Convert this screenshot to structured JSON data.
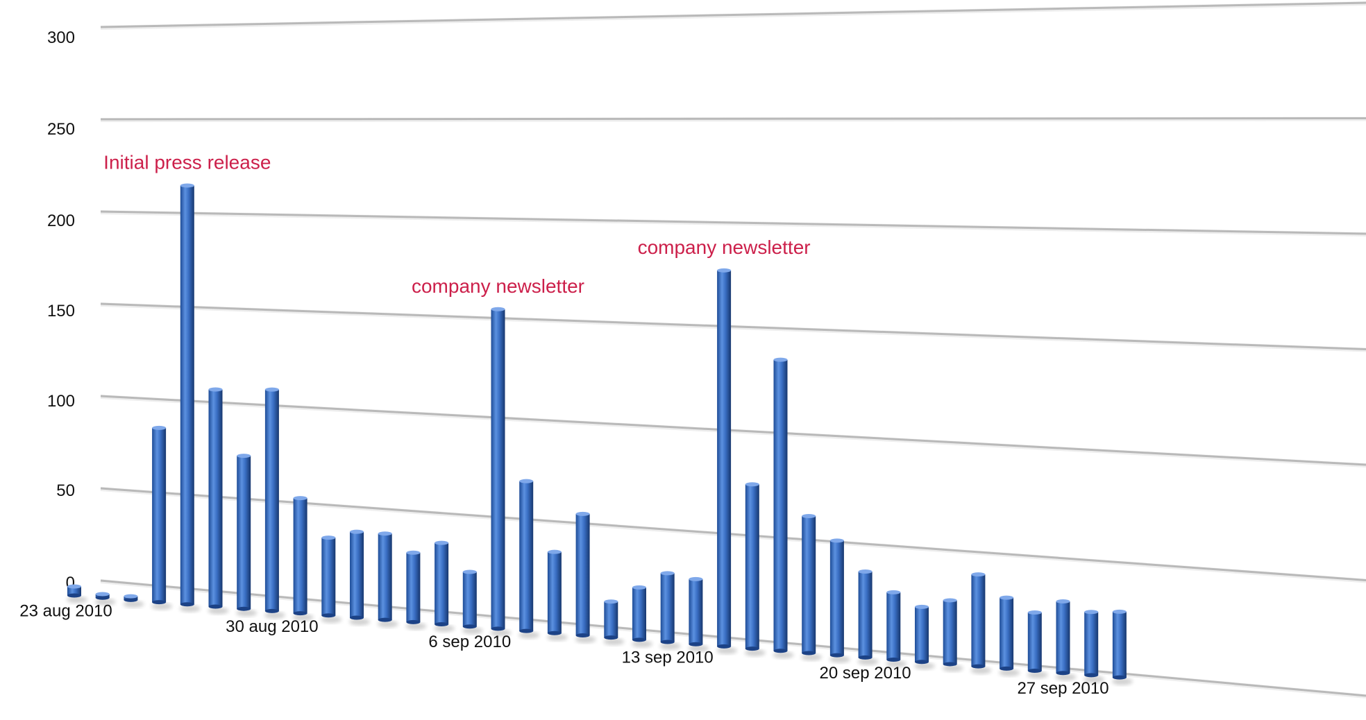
{
  "chart_data": {
    "type": "bar",
    "title": "",
    "xlabel": "",
    "ylabel": "",
    "ylim": [
      0,
      300
    ],
    "y_ticks": [
      "0",
      "50",
      "100",
      "150",
      "200",
      "250",
      "300"
    ],
    "x_tick_labels": [
      {
        "index": 0,
        "label": "23 aug 2010"
      },
      {
        "index": 7,
        "label": "30 aug 2010"
      },
      {
        "index": 14,
        "label": "6 sep 2010"
      },
      {
        "index": 21,
        "label": "13 sep 2010"
      },
      {
        "index": 28,
        "label": "20 sep 2010"
      },
      {
        "index": 35,
        "label": "27 sep 2010"
      }
    ],
    "values": [
      5,
      2,
      2,
      95,
      227,
      117,
      82,
      118,
      61,
      41,
      45,
      45,
      36,
      42,
      28,
      163,
      76,
      41,
      61,
      18,
      26,
      34,
      32,
      184,
      80,
      141,
      66,
      55,
      41,
      32,
      26,
      30,
      43,
      33,
      27,
      33,
      29,
      30
    ],
    "annotations": [
      {
        "index": 4,
        "text": "Initial press release"
      },
      {
        "index": 15,
        "text": "company newsletter"
      },
      {
        "index": 23,
        "text": "company newsletter"
      }
    ],
    "grid": true,
    "legend": "none",
    "bar_color": "#3a6fc4",
    "annotation_color": "#cc1f4a"
  }
}
